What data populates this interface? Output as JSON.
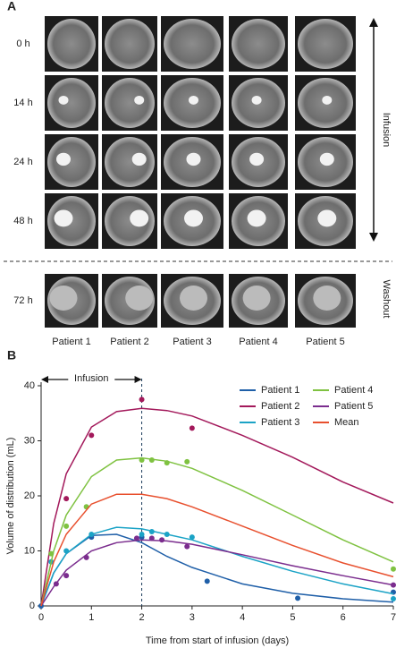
{
  "panel_a": {
    "label": "A",
    "rows": [
      "0 h",
      "14 h",
      "24 h",
      "48 h"
    ],
    "washout_row": "72 h",
    "columns": [
      "Patient 1",
      "Patient 2",
      "Patient 3",
      "Patient 4",
      "Patient 5"
    ],
    "phase_labels": [
      "Infusion",
      "Washout"
    ]
  },
  "chart_data": {
    "type": "line",
    "panel_label": "B",
    "x_label": "Time from start of infusion (days)",
    "y_label": "Volume of distribution (mL)",
    "annotation": {
      "text": "Infusion",
      "x": [
        0,
        2
      ]
    },
    "x": [
      0,
      0.25,
      0.5,
      1,
      1.5,
      2,
      2.5,
      3,
      4,
      5,
      6,
      7
    ],
    "xlim": [
      0,
      7
    ],
    "xticks": [
      0,
      1,
      2,
      3,
      4,
      5,
      6,
      7
    ],
    "ylim": [
      0,
      40
    ],
    "yticks": [
      0,
      10,
      20,
      30,
      40
    ],
    "series": [
      {
        "name": "Patient 1",
        "color": "#1f5fa8",
        "values": [
          0,
          6,
          9.5,
          12.8,
          13,
          11.5,
          9,
          7,
          4,
          2.3,
          1.3,
          0.7
        ],
        "points": {
          "x": [
            0,
            1,
            2,
            3.3,
            5.1,
            7
          ],
          "y": [
            0,
            12.5,
            12.5,
            4.5,
            1.4,
            2.5
          ]
        }
      },
      {
        "name": "Patient 2",
        "color": "#a3195b",
        "values": [
          0,
          15,
          24,
          32.5,
          35.3,
          35.9,
          35.5,
          34.5,
          31,
          27,
          22.5,
          18.7
        ],
        "points": {
          "x": [
            0.5,
            1,
            2,
            3
          ],
          "y": [
            19.5,
            31,
            37.5,
            32.3
          ]
        }
      },
      {
        "name": "Patient 3",
        "color": "#1ba3c6",
        "values": [
          0,
          6,
          9.5,
          13,
          14.3,
          14,
          13,
          12,
          9,
          6.3,
          4,
          2.2
        ],
        "points": {
          "x": [
            0.2,
            0.5,
            1,
            2,
            2.2,
            2.5,
            3,
            7
          ],
          "y": [
            8,
            10,
            13,
            13,
            13.5,
            13,
            12.5,
            1.3
          ]
        }
      },
      {
        "name": "Patient 4",
        "color": "#7fc241",
        "values": [
          0,
          10,
          16.5,
          23.5,
          26.5,
          26.9,
          26.3,
          25,
          21,
          16.5,
          12,
          8
        ],
        "points": {
          "x": [
            0.2,
            0.5,
            0.9,
            2,
            2.2,
            2.5,
            2.9,
            7
          ],
          "y": [
            9.5,
            14.5,
            18,
            26.5,
            26.5,
            26,
            26.2,
            6.7
          ]
        }
      },
      {
        "name": "Patient 5",
        "color": "#7b2d8e",
        "values": [
          0,
          3.5,
          6.5,
          10,
          11.5,
          12,
          11.8,
          11.2,
          9.3,
          7.3,
          5.5,
          3.8
        ],
        "points": {
          "x": [
            0.3,
            0.5,
            0.9,
            1.9,
            2.2,
            2.4,
            2.9,
            7
          ],
          "y": [
            4,
            5.5,
            8.8,
            12.3,
            12.3,
            12,
            10.8,
            3.8
          ]
        }
      },
      {
        "name": "Mean",
        "color": "#e8502e",
        "values": [
          0,
          8,
          13,
          18.5,
          20.3,
          20.3,
          19.5,
          18,
          14.5,
          11,
          7.8,
          5.3
        ]
      }
    ]
  }
}
